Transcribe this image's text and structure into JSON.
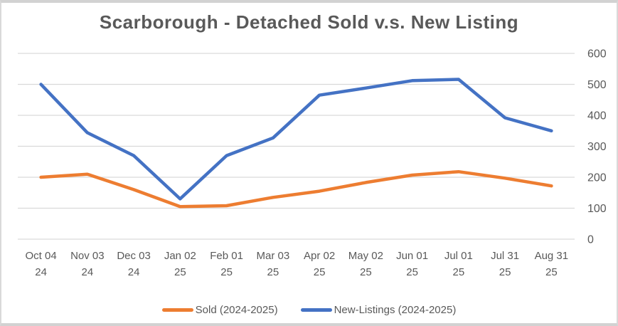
{
  "chart_data": {
    "type": "line",
    "title": "Scarborough - Detached Sold v.s. New Listing",
    "categories": [
      "Oct 04 24",
      "Nov 03 24",
      "Dec 03 24",
      "Jan 02 25",
      "Feb 01 25",
      "Mar 03 25",
      "Apr 02 25",
      "May 02 25",
      "Jun 01 25",
      "Jul 01 25",
      "Jul 31 25",
      "Aug 31 25"
    ],
    "tick_labels": [
      {
        "l1": "Oct 04",
        "l2": "24"
      },
      {
        "l1": "Nov 03",
        "l2": "24"
      },
      {
        "l1": "Dec 03",
        "l2": "24"
      },
      {
        "l1": "Jan 02",
        "l2": "25"
      },
      {
        "l1": "Feb 01",
        "l2": "25"
      },
      {
        "l1": "Mar 03",
        "l2": "25"
      },
      {
        "l1": "Apr 02",
        "l2": "25"
      },
      {
        "l1": "May 02",
        "l2": "25"
      },
      {
        "l1": "Jun 01",
        "l2": "25"
      },
      {
        "l1": "Jul 01",
        "l2": "25"
      },
      {
        "l1": "Jul 31",
        "l2": "25"
      },
      {
        "l1": "Aug 31",
        "l2": "25"
      }
    ],
    "series": [
      {
        "name": "Sold (2024-2025)",
        "color": "#ED7D31",
        "values": [
          200,
          210,
          160,
          105,
          108,
          135,
          155,
          183,
          207,
          218,
          197,
          172
        ]
      },
      {
        "name": "New-Listings (2024-2025)",
        "color": "#4472C4",
        "values": [
          500,
          344,
          270,
          130,
          270,
          327,
          465,
          488,
          512,
          516,
          392,
          350
        ]
      }
    ],
    "ylim": [
      0,
      600
    ],
    "yticks": [
      0,
      100,
      200,
      300,
      400,
      500,
      600
    ],
    "y_axis_side": "right",
    "grid": true,
    "gridline_color": "#D9D9D9",
    "label_color": "#595959",
    "legend_position": "bottom",
    "xlabel": "",
    "ylabel": ""
  }
}
